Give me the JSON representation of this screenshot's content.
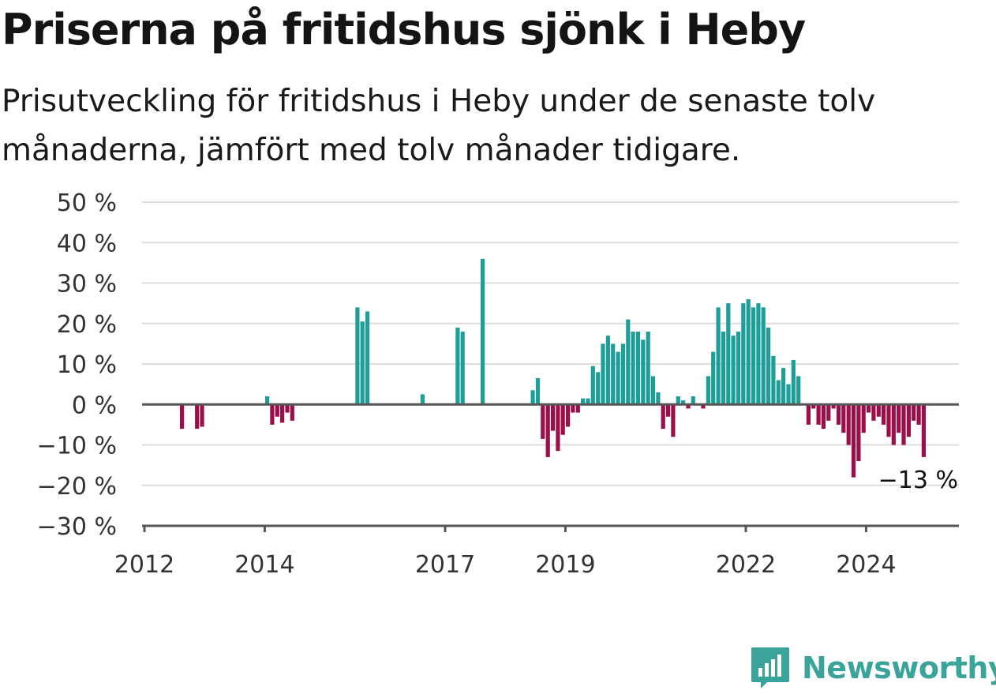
{
  "title": "Priserna på fritidshus sjönk i Heby",
  "subtitle": "Prisutveckling för fritidshus i Heby under de senaste tolv månaderna, jämfört med tolv månader tidigare.",
  "brand": "Newsworthy",
  "colors": {
    "positive": "#1e9e98",
    "negative": "#9b0e4a",
    "grid": "#dddddd",
    "axis": "#555555",
    "brand": "#3aa39a"
  },
  "chart_data": {
    "type": "bar",
    "title": "Priserna på fritidshus sjönk i Heby",
    "xlabel": "",
    "ylabel": "",
    "ylim": [
      -30,
      50
    ],
    "y_ticks": [
      -30,
      -20,
      -10,
      0,
      10,
      20,
      30,
      40,
      50
    ],
    "y_tick_labels": [
      "−30 %",
      "−20 %",
      "−10 %",
      "0 %",
      "10 %",
      "20 %",
      "30 %",
      "40 %",
      "50 %"
    ],
    "x_ticks": [
      "2012",
      "2014",
      "2017",
      "2019",
      "2022",
      "2024"
    ],
    "grid": true,
    "annotation": "−13 %",
    "series": [
      {
        "values": [
          {
            "x": "2012-08",
            "y": -6
          },
          {
            "x": "2012-11",
            "y": -6
          },
          {
            "x": "2012-12",
            "y": -5.5
          },
          {
            "x": "2014-01",
            "y": 2
          },
          {
            "x": "2014-02",
            "y": -5
          },
          {
            "x": "2014-03",
            "y": -3
          },
          {
            "x": "2014-04",
            "y": -4.5
          },
          {
            "x": "2014-05",
            "y": -2
          },
          {
            "x": "2014-06",
            "y": -4
          },
          {
            "x": "2015-07",
            "y": 24
          },
          {
            "x": "2015-08",
            "y": 20.5
          },
          {
            "x": "2015-09",
            "y": 23
          },
          {
            "x": "2016-08",
            "y": 2.5
          },
          {
            "x": "2017-03",
            "y": 19
          },
          {
            "x": "2017-04",
            "y": 18
          },
          {
            "x": "2017-08",
            "y": 36
          },
          {
            "x": "2018-06",
            "y": 3.5
          },
          {
            "x": "2018-07",
            "y": 6.5
          },
          {
            "x": "2018-08",
            "y": -8.5
          },
          {
            "x": "2018-09",
            "y": -13
          },
          {
            "x": "2018-10",
            "y": -6.5
          },
          {
            "x": "2018-11",
            "y": -11.5
          },
          {
            "x": "2018-12",
            "y": -7.5
          },
          {
            "x": "2019-01",
            "y": -5.5
          },
          {
            "x": "2019-02",
            "y": -2
          },
          {
            "x": "2019-03",
            "y": -2
          },
          {
            "x": "2019-04",
            "y": 1.5
          },
          {
            "x": "2019-05",
            "y": 1.5
          },
          {
            "x": "2019-06",
            "y": 9.5
          },
          {
            "x": "2019-07",
            "y": 8
          },
          {
            "x": "2019-08",
            "y": 15
          },
          {
            "x": "2019-09",
            "y": 17
          },
          {
            "x": "2019-10",
            "y": 15
          },
          {
            "x": "2019-11",
            "y": 13
          },
          {
            "x": "2019-12",
            "y": 15
          },
          {
            "x": "2020-01",
            "y": 21
          },
          {
            "x": "2020-02",
            "y": 18
          },
          {
            "x": "2020-03",
            "y": 18
          },
          {
            "x": "2020-04",
            "y": 16
          },
          {
            "x": "2020-05",
            "y": 18
          },
          {
            "x": "2020-06",
            "y": 7
          },
          {
            "x": "2020-07",
            "y": 3
          },
          {
            "x": "2020-08",
            "y": -6
          },
          {
            "x": "2020-09",
            "y": -3
          },
          {
            "x": "2020-10",
            "y": -8
          },
          {
            "x": "2020-11",
            "y": 2
          },
          {
            "x": "2020-12",
            "y": 1
          },
          {
            "x": "2021-01",
            "y": -1
          },
          {
            "x": "2021-02",
            "y": 2
          },
          {
            "x": "2021-04",
            "y": -1
          },
          {
            "x": "2021-05",
            "y": 7
          },
          {
            "x": "2021-06",
            "y": 13
          },
          {
            "x": "2021-07",
            "y": 24
          },
          {
            "x": "2021-08",
            "y": 18
          },
          {
            "x": "2021-09",
            "y": 25
          },
          {
            "x": "2021-10",
            "y": 17
          },
          {
            "x": "2021-11",
            "y": 18
          },
          {
            "x": "2021-12",
            "y": 25
          },
          {
            "x": "2022-01",
            "y": 26
          },
          {
            "x": "2022-02",
            "y": 24
          },
          {
            "x": "2022-03",
            "y": 25
          },
          {
            "x": "2022-04",
            "y": 24
          },
          {
            "x": "2022-05",
            "y": 19
          },
          {
            "x": "2022-06",
            "y": 12
          },
          {
            "x": "2022-07",
            "y": 6
          },
          {
            "x": "2022-08",
            "y": 9
          },
          {
            "x": "2022-09",
            "y": 5
          },
          {
            "x": "2022-10",
            "y": 11
          },
          {
            "x": "2022-11",
            "y": 7
          },
          {
            "x": "2023-01",
            "y": -5
          },
          {
            "x": "2023-02",
            "y": -1
          },
          {
            "x": "2023-03",
            "y": -5
          },
          {
            "x": "2023-04",
            "y": -6
          },
          {
            "x": "2023-05",
            "y": -4
          },
          {
            "x": "2023-06",
            "y": -1
          },
          {
            "x": "2023-07",
            "y": -5
          },
          {
            "x": "2023-08",
            "y": -7
          },
          {
            "x": "2023-09",
            "y": -10
          },
          {
            "x": "2023-10",
            "y": -18
          },
          {
            "x": "2023-11",
            "y": -14
          },
          {
            "x": "2023-12",
            "y": -7
          },
          {
            "x": "2024-01",
            "y": -2
          },
          {
            "x": "2024-02",
            "y": -4
          },
          {
            "x": "2024-03",
            "y": -3
          },
          {
            "x": "2024-04",
            "y": -5
          },
          {
            "x": "2024-05",
            "y": -8
          },
          {
            "x": "2024-06",
            "y": -10
          },
          {
            "x": "2024-07",
            "y": -7
          },
          {
            "x": "2024-08",
            "y": -10
          },
          {
            "x": "2024-09",
            "y": -8
          },
          {
            "x": "2024-10",
            "y": -4
          },
          {
            "x": "2024-11",
            "y": -5
          },
          {
            "x": "2024-12",
            "y": -13
          }
        ]
      }
    ]
  }
}
